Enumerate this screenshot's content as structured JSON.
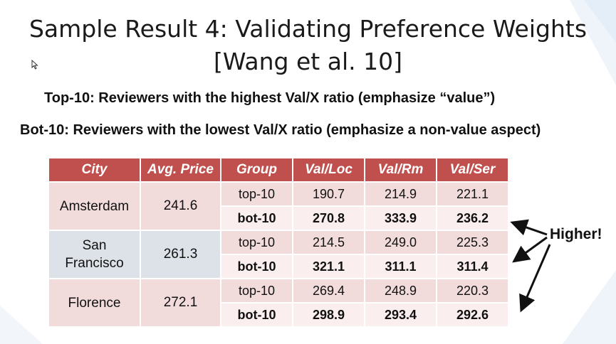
{
  "title": {
    "line1": "Sample Result 4: Validating Preference Weights",
    "line2": "[Wang et al. 10]"
  },
  "top_text": "Top-10: Reviewers with the highest Val/X ratio (emphasize “value”)",
  "bot_text": "Bot-10: Reviewers with the lowest Val/X ratio (emphasize a non-value aspect)",
  "table": {
    "headers": [
      "City",
      "Avg. Price",
      "Group",
      "Val/Loc",
      "Val/Rm",
      "Val/Ser"
    ],
    "rows": [
      {
        "city_lines": [
          "Amsterdam"
        ],
        "price": "241.6",
        "groups": [
          {
            "group": "top-10",
            "values": [
              "190.7",
              "214.9",
              "221.1"
            ]
          },
          {
            "group": "bot-10",
            "values": [
              "270.8",
              "333.9",
              "236.2"
            ]
          }
        ]
      },
      {
        "city_lines": [
          "San",
          "Francisco"
        ],
        "price": "261.3",
        "groups": [
          {
            "group": "top-10",
            "values": [
              "214.5",
              "249.0",
              "225.3"
            ]
          },
          {
            "group": "bot-10",
            "values": [
              "321.1",
              "311.1",
              "311.4"
            ]
          }
        ]
      },
      {
        "city_lines": [
          "Florence"
        ],
        "price": "272.1",
        "groups": [
          {
            "group": "top-10",
            "values": [
              "269.4",
              "248.9",
              "220.3"
            ]
          },
          {
            "group": "bot-10",
            "values": [
              "298.9",
              "293.4",
              "292.6"
            ]
          }
        ]
      }
    ]
  },
  "annotation": "Higher!",
  "colors": {
    "header_bg": "#c0504d",
    "cell_pink": "#f2dcdb",
    "cell_light": "#faeeee",
    "cell_gray": "#dde1e8"
  },
  "icons": {
    "cursor": "mouse-pointer-icon"
  }
}
